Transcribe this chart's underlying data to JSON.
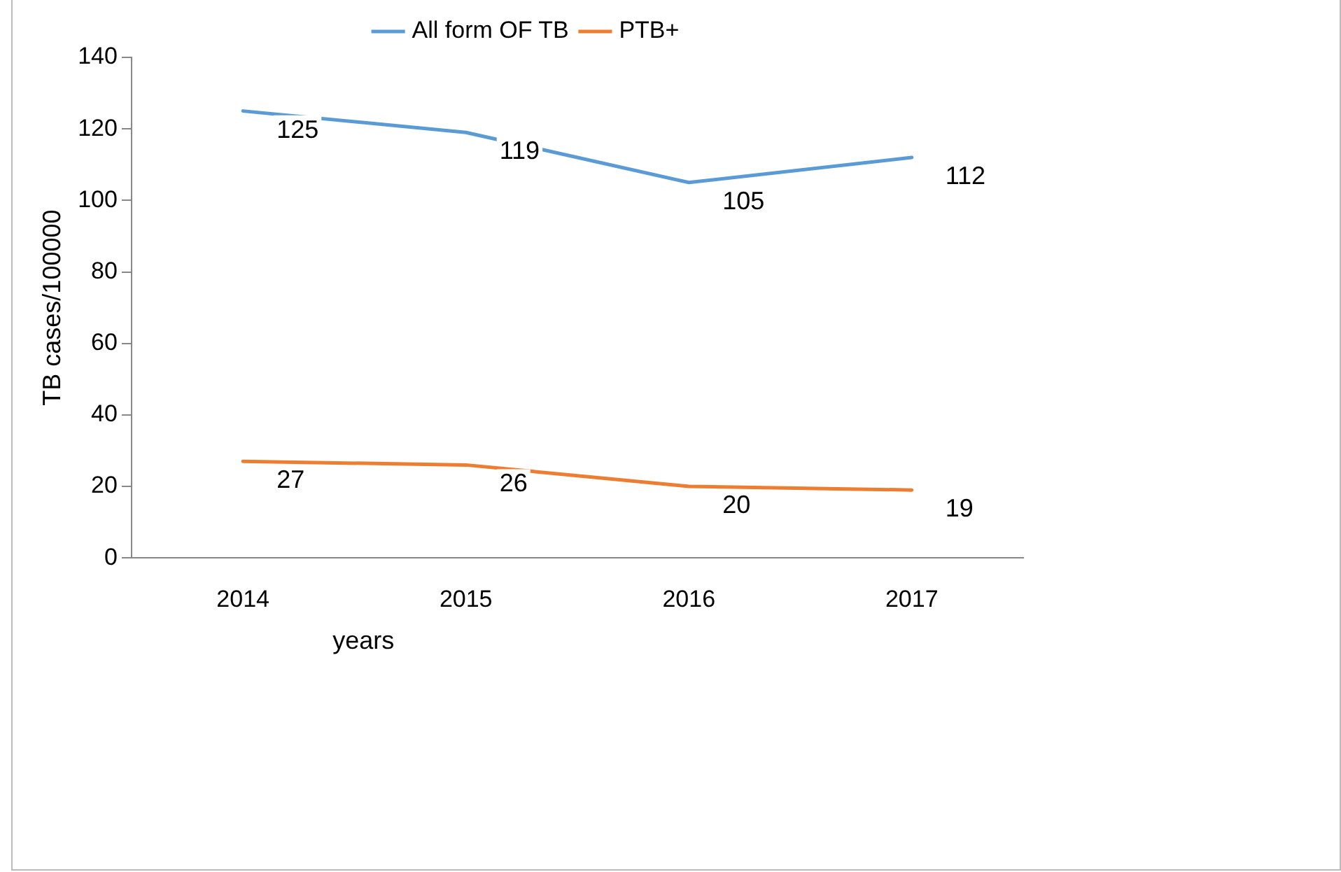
{
  "chart_data": {
    "type": "line",
    "ylabel": "TB cases/100000",
    "xlabel": "years",
    "categories": [
      "2014",
      "2015",
      "2016",
      "2017"
    ],
    "series": [
      {
        "name": "All form OF TB",
        "color": "#5b9bd5",
        "values": [
          125,
          119,
          105,
          112
        ]
      },
      {
        "name": "PTB+",
        "color": "#ed7d31",
        "values": [
          27,
          26,
          20,
          19
        ]
      }
    ],
    "ylim": [
      0,
      140
    ],
    "yticks": [
      0,
      20,
      40,
      60,
      80,
      100,
      120,
      140
    ],
    "grid": false,
    "legend": "top",
    "marker": "none",
    "line_style": "solid",
    "data_labels": true
  }
}
